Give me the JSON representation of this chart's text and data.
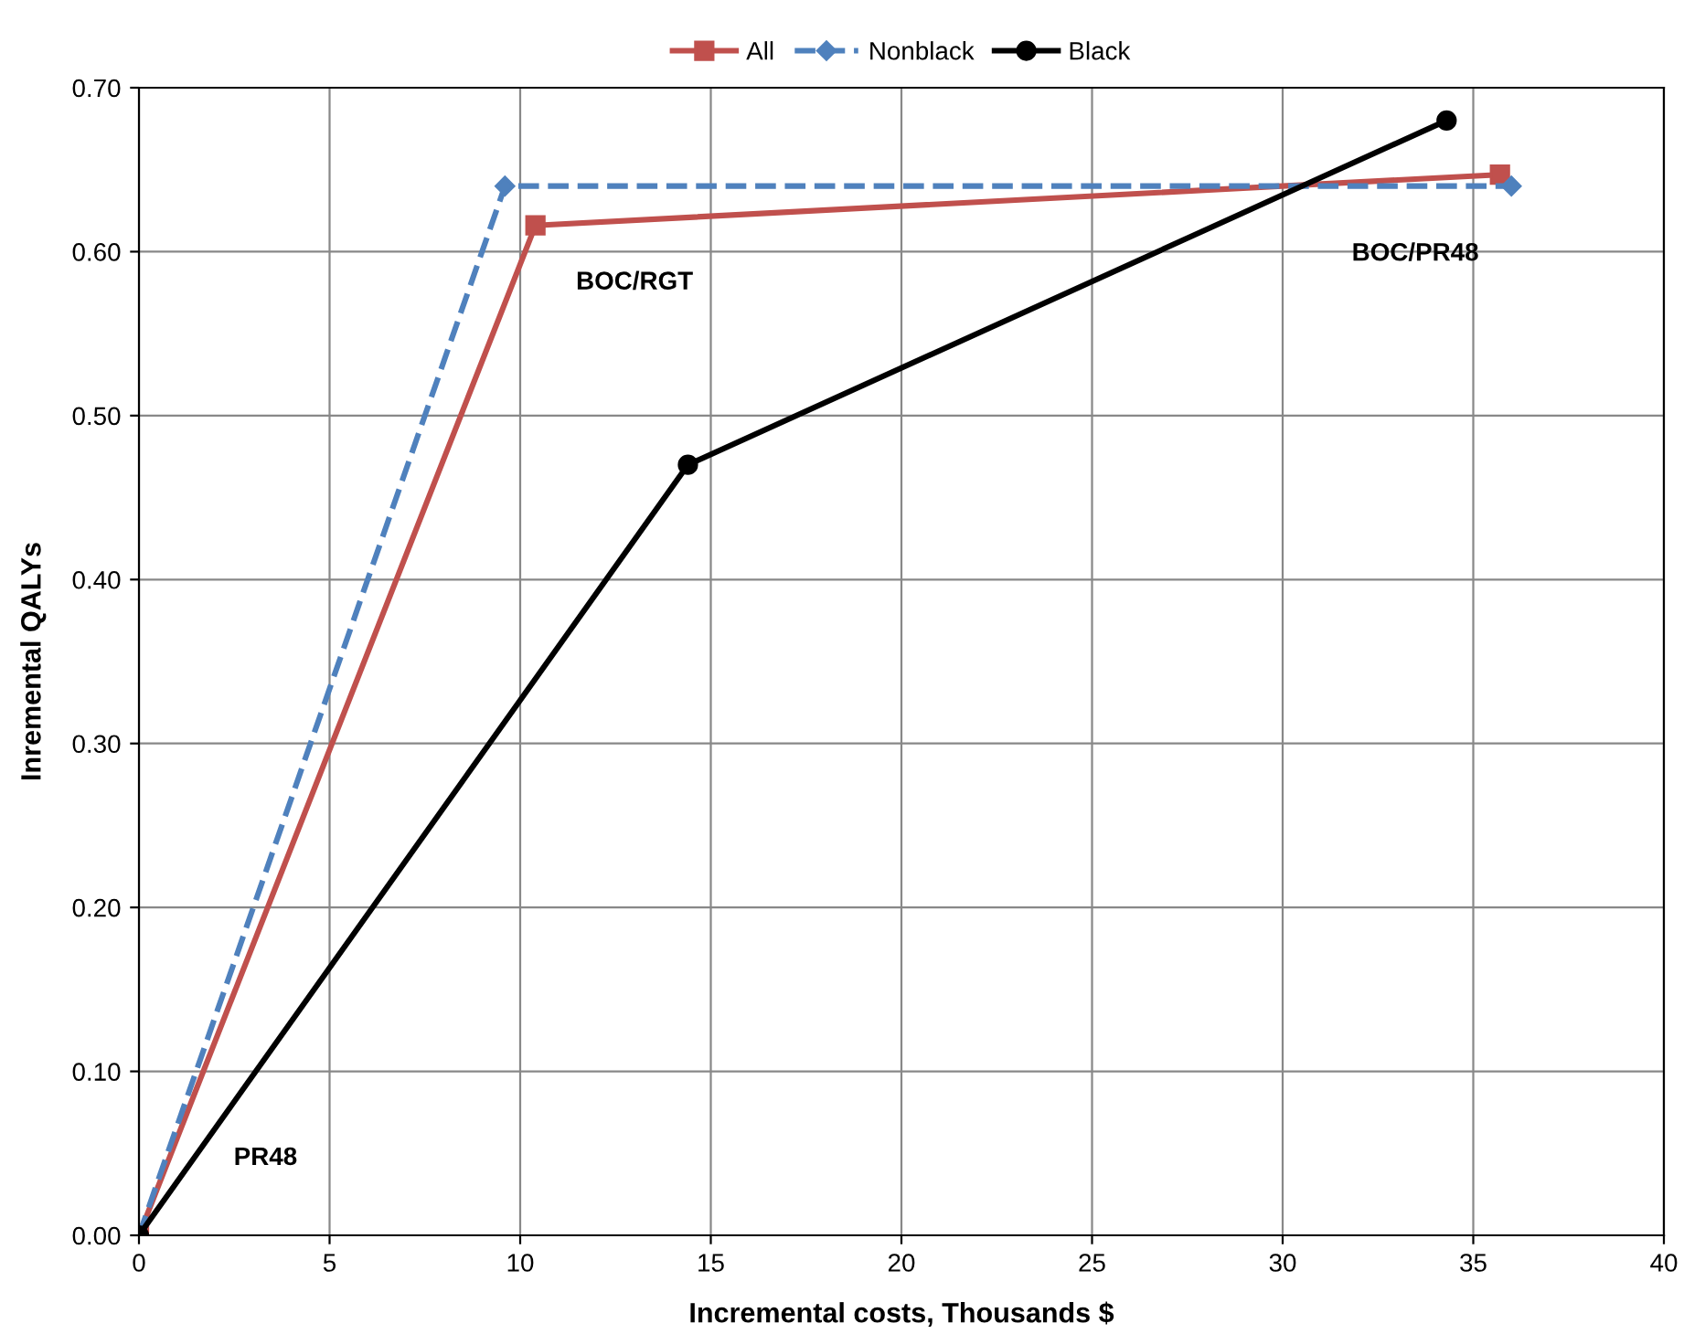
{
  "chart_data": {
    "type": "line",
    "xlabel": "Incremental costs, Thousands $",
    "ylabel": "Inremental QALYs",
    "series": [
      {
        "name": "All",
        "color": "#c0504d",
        "x": [
          0,
          10.4,
          35.7
        ],
        "values": [
          0,
          0.616,
          0.647
        ],
        "marker": "square",
        "line_style": "solid"
      },
      {
        "name": "Nonblack",
        "color": "#4f81bd",
        "x": [
          0,
          9.6,
          36.0
        ],
        "values": [
          0,
          0.64,
          0.64
        ],
        "marker": "diamond",
        "line_style": "dashed"
      },
      {
        "name": "Black",
        "color": "#000000",
        "x": [
          0,
          14.4,
          34.3
        ],
        "values": [
          0,
          0.47,
          0.68
        ],
        "marker": "circle",
        "line_style": "solid"
      }
    ],
    "annotations": [
      "PR48",
      "BOC/RGT",
      "BOC/PR48"
    ],
    "xlim": [
      0,
      40
    ],
    "xticks": [
      0,
      5,
      10,
      15,
      20,
      25,
      30,
      35,
      40
    ],
    "ylim": [
      0,
      0.7
    ],
    "yticks": [
      {
        "value": 0,
        "label": "0.00"
      },
      {
        "value": 0.1,
        "label": "0.10"
      },
      {
        "value": 0.2,
        "label": "0.20"
      },
      {
        "value": 0.3,
        "label": "0.30"
      },
      {
        "value": 0.4,
        "label": "0.40"
      },
      {
        "value": 0.5,
        "label": "0.50"
      },
      {
        "value": 0.6,
        "label": "0.60"
      },
      {
        "value": 0.7,
        "label": "0.70"
      }
    ],
    "grid": true,
    "legend": "top"
  }
}
